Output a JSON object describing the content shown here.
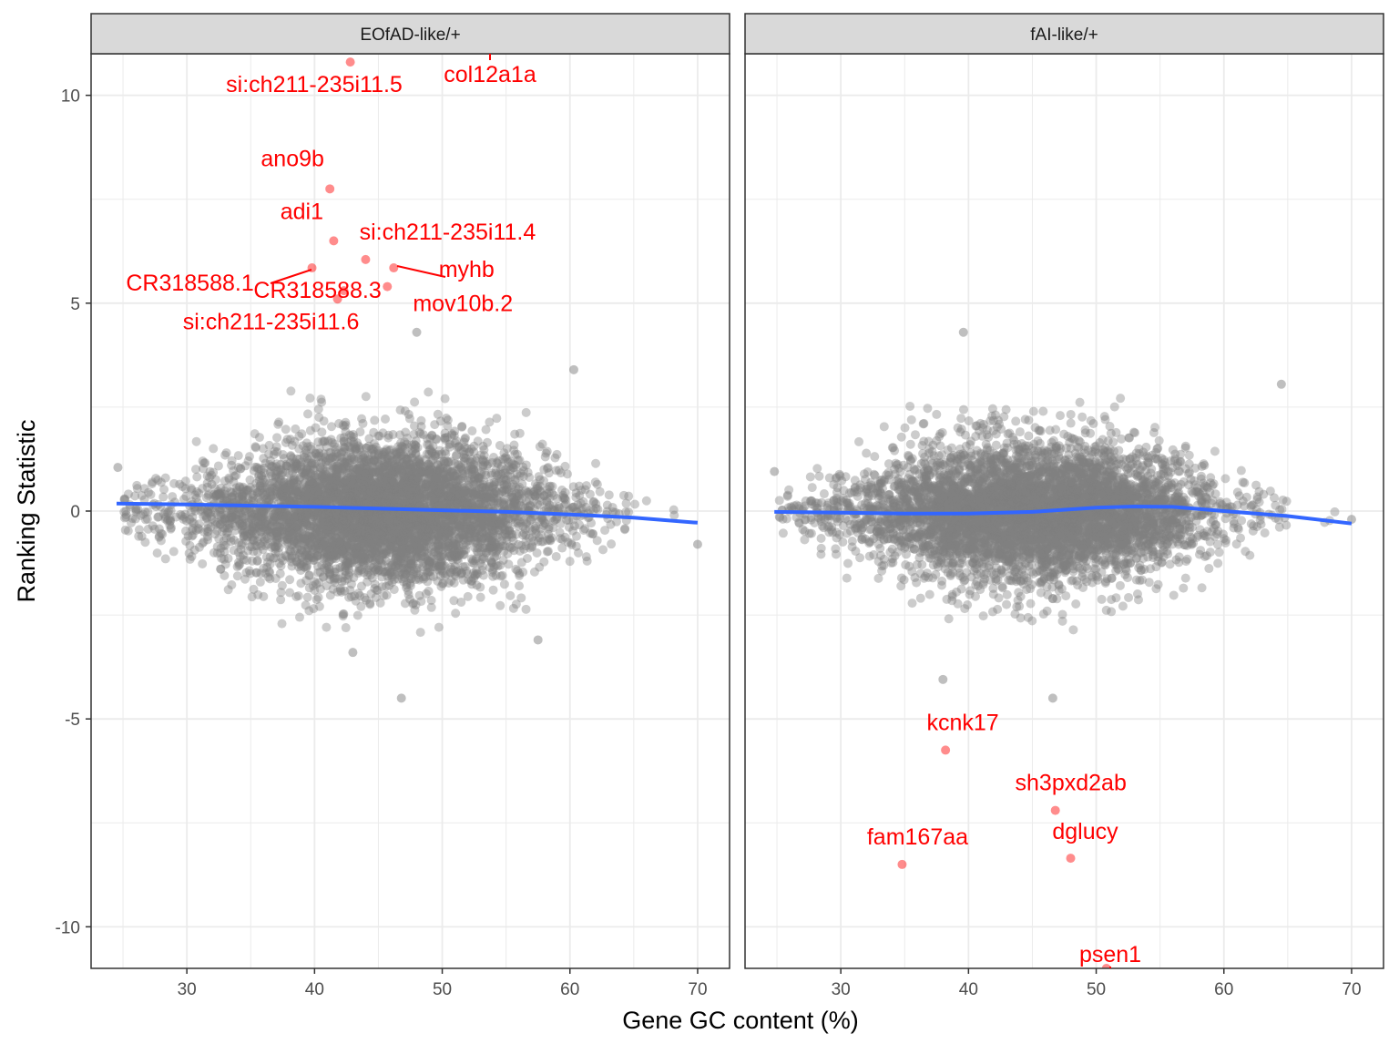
{
  "chart_data": {
    "type": "scatter",
    "facets": [
      "EOfAD-like/+",
      "fAI-like/+"
    ],
    "xlabel": "Gene GC content (%)",
    "ylabel": "Ranking Statistic",
    "xlim": [
      22.5,
      72.5
    ],
    "ylim": [
      -11,
      11
    ],
    "x_ticks": [
      30,
      40,
      50,
      60,
      70
    ],
    "y_ticks": [
      -10,
      -5,
      0,
      5,
      10
    ],
    "grid": true,
    "colors": {
      "points": "#808080",
      "highlight": "#ff0000",
      "trend": "#3366ff",
      "strip": "#d9d9d9",
      "gridline": "#ebebeb"
    },
    "trend_lines": [
      {
        "facet": "EOfAD-like/+",
        "x": [
          24.5,
          30,
          35,
          40,
          45,
          50,
          55,
          60,
          65,
          70
        ],
        "y": [
          0.18,
          0.16,
          0.13,
          0.1,
          0.06,
          0.02,
          -0.02,
          -0.08,
          -0.16,
          -0.28
        ]
      },
      {
        "facet": "fAI-like/+",
        "x": [
          24.8,
          30,
          35,
          40,
          45,
          50,
          53,
          56,
          60,
          65,
          70
        ],
        "y": [
          -0.02,
          -0.04,
          -0.06,
          -0.06,
          -0.02,
          0.08,
          0.11,
          0.1,
          0.0,
          -0.12,
          -0.3
        ]
      }
    ],
    "highlighted_genes": [
      {
        "facet": "EOfAD-like/+",
        "gene": "si:ch211-235i11.5",
        "x": 42.8,
        "y": 10.8
      },
      {
        "facet": "EOfAD-like/+",
        "gene": "col12a1a",
        "x": 53.5,
        "y": 11.2
      },
      {
        "facet": "EOfAD-like/+",
        "gene": "ano9b",
        "x": 41.2,
        "y": 7.75
      },
      {
        "facet": "EOfAD-like/+",
        "gene": "adi1",
        "x": 41.5,
        "y": 6.5
      },
      {
        "facet": "EOfAD-like/+",
        "gene": "si:ch211-235i11.4",
        "x": 44.0,
        "y": 6.05
      },
      {
        "facet": "EOfAD-like/+",
        "gene": "CR318588.1",
        "x": 39.8,
        "y": 5.85
      },
      {
        "facet": "EOfAD-like/+",
        "gene": "CR318588.3",
        "x": 42.3,
        "y": 5.3
      },
      {
        "facet": "EOfAD-like/+",
        "gene": "myhb",
        "x": 46.2,
        "y": 5.85
      },
      {
        "facet": "EOfAD-like/+",
        "gene": "si:ch211-235i11.6",
        "x": 41.8,
        "y": 5.1
      },
      {
        "facet": "EOfAD-like/+",
        "gene": "mov10b.2",
        "x": 45.7,
        "y": 5.4
      },
      {
        "facet": "fAI-like/+",
        "gene": "kcnk17",
        "x": 38.2,
        "y": -5.75
      },
      {
        "facet": "fAI-like/+",
        "gene": "sh3pxd2ab",
        "x": 46.8,
        "y": -7.2
      },
      {
        "facet": "fAI-like/+",
        "gene": "dglucy",
        "x": 48.0,
        "y": -8.35
      },
      {
        "facet": "fAI-like/+",
        "gene": "fam167aa",
        "x": 34.8,
        "y": -8.5
      },
      {
        "facet": "fAI-like/+",
        "gene": "psen1",
        "x": 50.8,
        "y": -11.0
      }
    ],
    "notable_outliers": [
      {
        "facet": "EOfAD-like/+",
        "x": 24.6,
        "y": 1.05
      },
      {
        "facet": "EOfAD-like/+",
        "x": 70.0,
        "y": -0.8
      },
      {
        "facet": "EOfAD-like/+",
        "x": 46.8,
        "y": -4.5
      },
      {
        "facet": "EOfAD-like/+",
        "x": 60.3,
        "y": 3.4
      },
      {
        "facet": "EOfAD-like/+",
        "x": 43.0,
        "y": -3.4
      },
      {
        "facet": "EOfAD-like/+",
        "x": 57.5,
        "y": -3.1
      },
      {
        "facet": "EOfAD-like/+",
        "x": 48.0,
        "y": 4.3
      },
      {
        "facet": "fAI-like/+",
        "x": 24.8,
        "y": 0.95
      },
      {
        "facet": "fAI-like/+",
        "x": 70.0,
        "y": -0.2
      },
      {
        "facet": "fAI-like/+",
        "x": 39.6,
        "y": 4.3
      },
      {
        "facet": "fAI-like/+",
        "x": 64.5,
        "y": 3.05
      },
      {
        "facet": "fAI-like/+",
        "x": 46.6,
        "y": -4.5
      },
      {
        "facet": "fAI-like/+",
        "x": 38.0,
        "y": -4.05
      }
    ],
    "background_cloud": {
      "description": "several thousand grey genes centred near 0",
      "x_center": 45,
      "x_spread": 7,
      "y_spread": 0.9
    }
  }
}
